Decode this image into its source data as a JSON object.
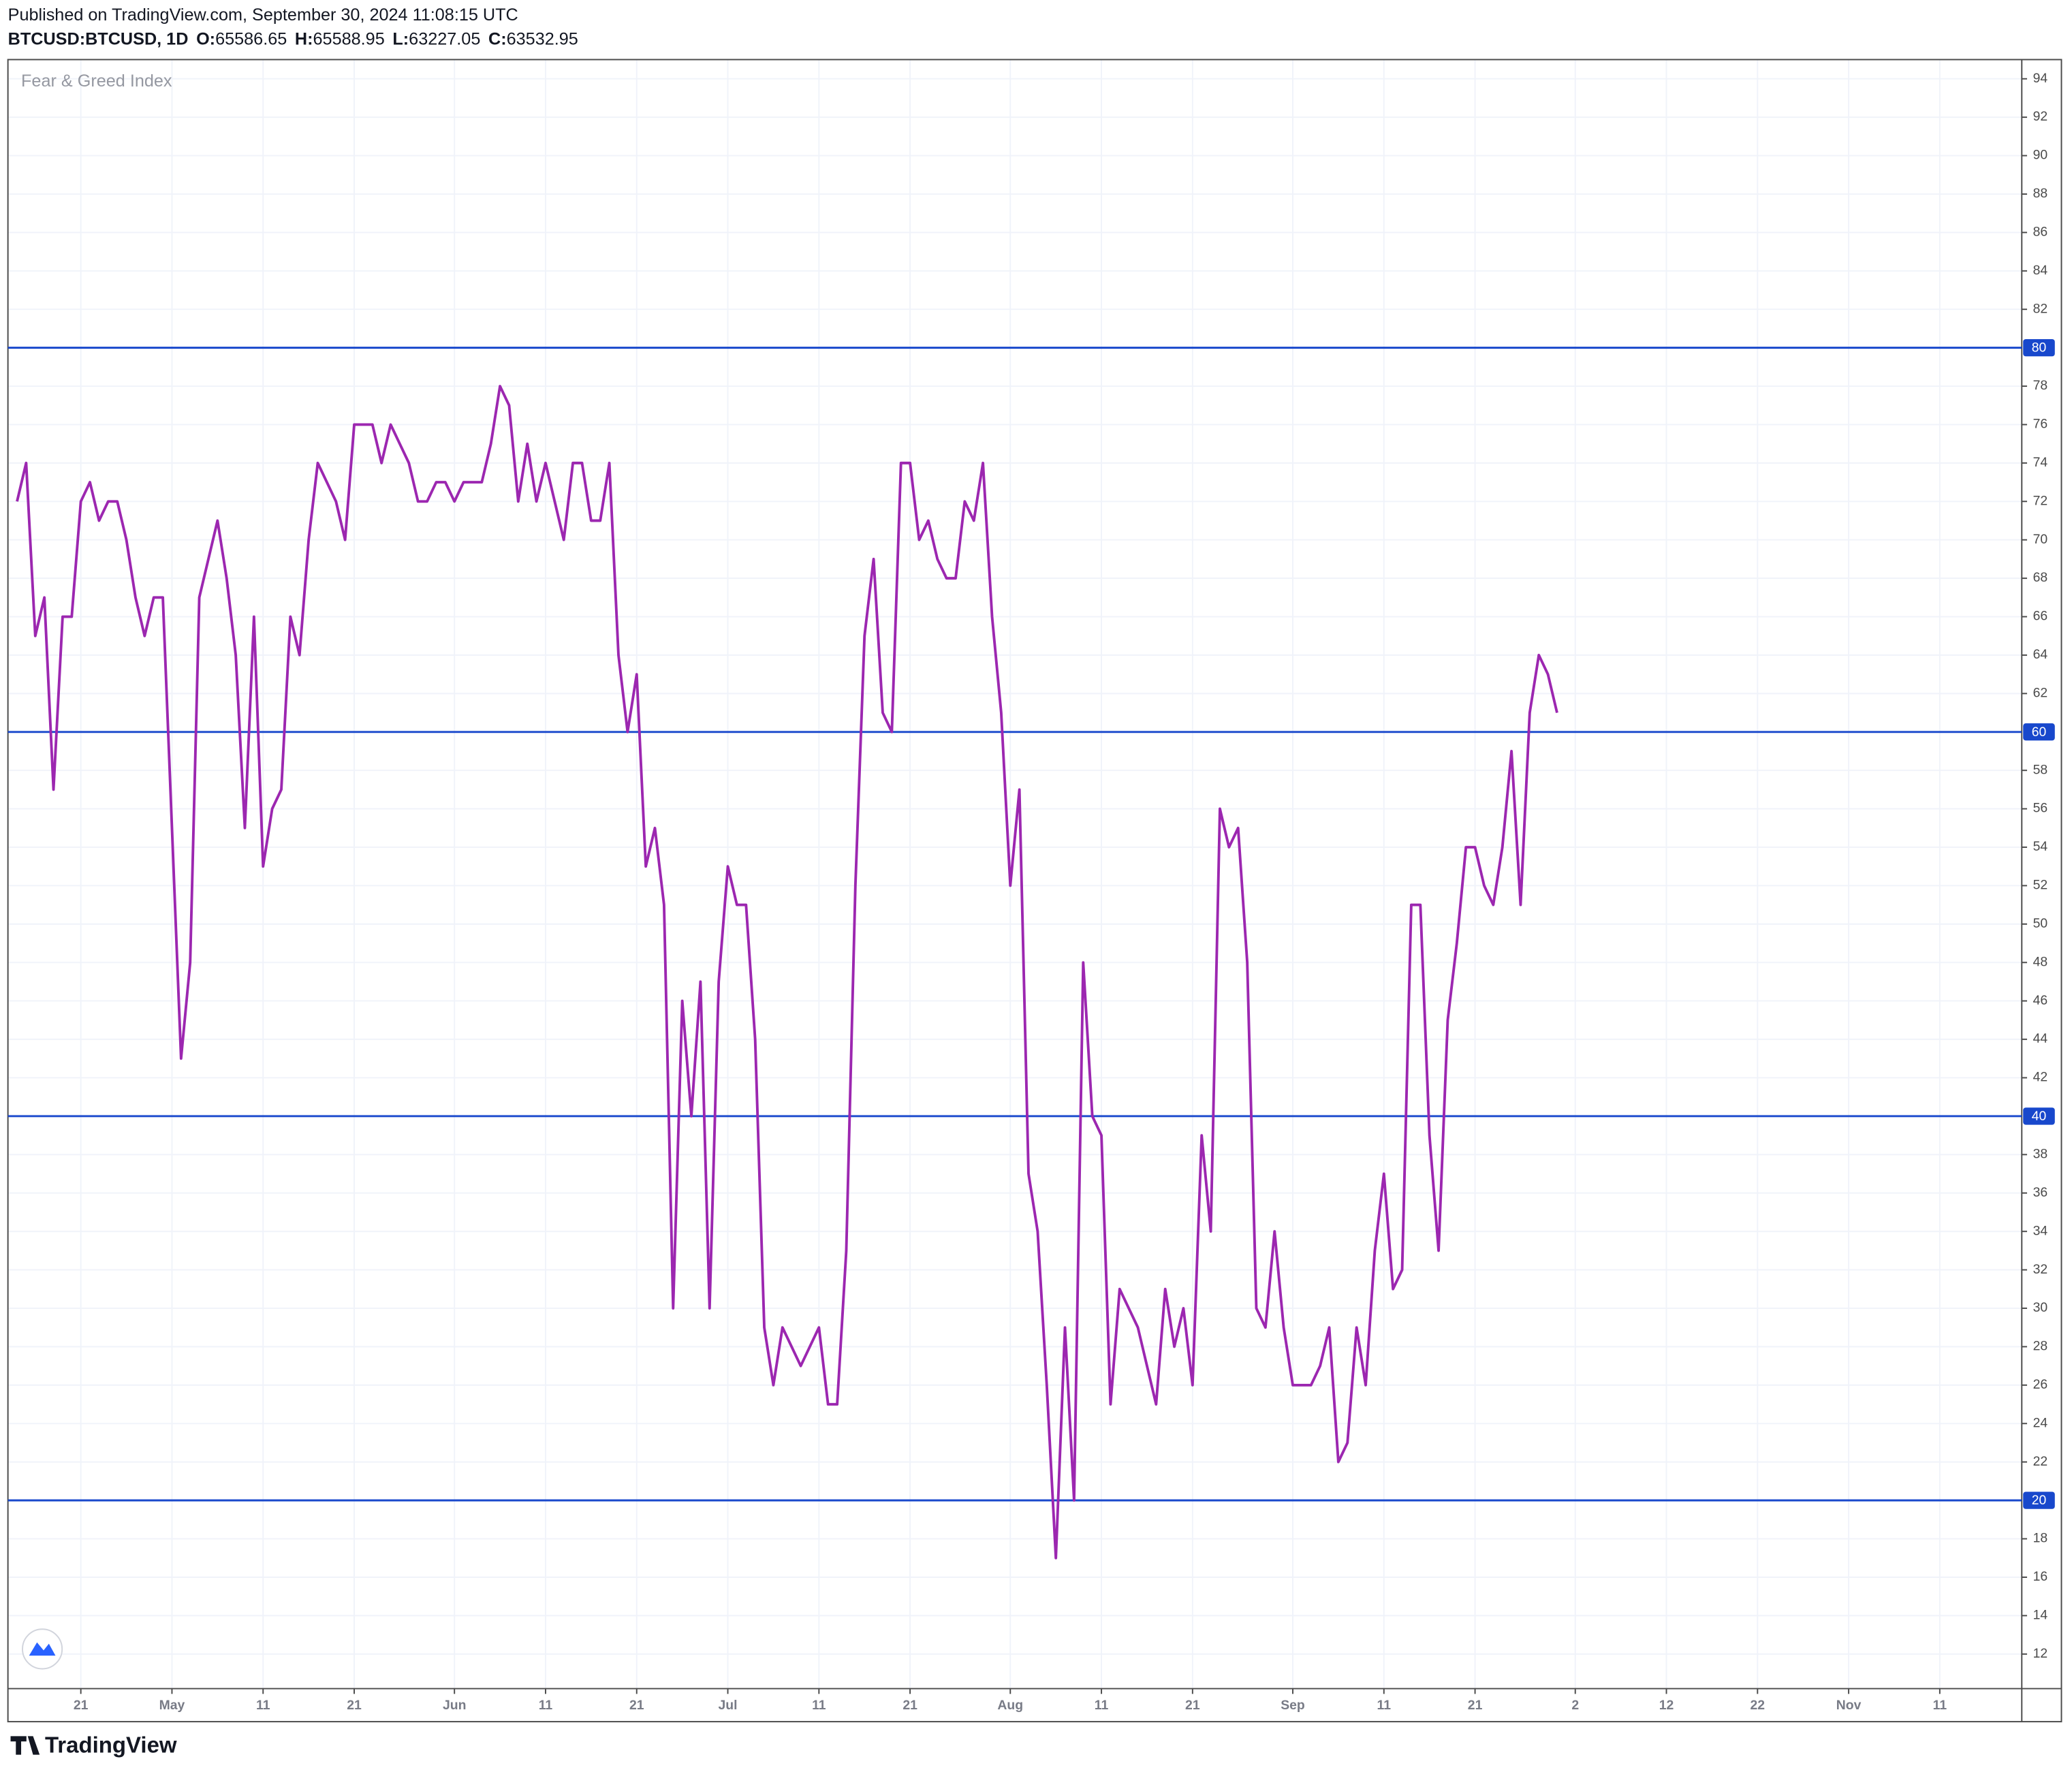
{
  "header": {
    "published": "Published on TradingView.com, September 30, 2024 11:08:15 UTC",
    "symbol": "BTCUSD:BTCUSD, 1D",
    "ohlc": [
      {
        "label": "O:",
        "value": 65586.65
      },
      {
        "label": "H:",
        "value": 65588.95
      },
      {
        "label": "L:",
        "value": 63227.05
      },
      {
        "label": "C:",
        "value": 63532.95
      }
    ]
  },
  "brand": "TradingView",
  "chart_data": {
    "type": "line",
    "title": "Fear & Greed Index",
    "x": [
      "Apr 14",
      "Apr 15",
      "Apr 16",
      "Apr 17",
      "Apr 18",
      "Apr 19",
      "Apr 20",
      "Apr 21",
      "Apr 22",
      "Apr 23",
      "Apr 24",
      "Apr 25",
      "Apr 26",
      "Apr 27",
      "Apr 28",
      "Apr 29",
      "Apr 30",
      "May 1",
      "May 2",
      "May 3",
      "May 4",
      "May 5",
      "May 6",
      "May 7",
      "May 8",
      "May 9",
      "May 10",
      "May 11",
      "May 12",
      "May 13",
      "May 14",
      "May 15",
      "May 16",
      "May 17",
      "May 18",
      "May 19",
      "May 20",
      "May 21",
      "May 22",
      "May 23",
      "May 24",
      "May 25",
      "May 26",
      "May 27",
      "May 28",
      "May 29",
      "May 30",
      "May 31",
      "Jun 1",
      "Jun 2",
      "Jun 3",
      "Jun 4",
      "Jun 5",
      "Jun 6",
      "Jun 7",
      "Jun 8",
      "Jun 9",
      "Jun 10",
      "Jun 11",
      "Jun 12",
      "Jun 13",
      "Jun 14",
      "Jun 15",
      "Jun 16",
      "Jun 17",
      "Jun 18",
      "Jun 19",
      "Jun 20",
      "Jun 21",
      "Jun 22",
      "Jun 23",
      "Jun 24",
      "Jun 25",
      "Jun 26",
      "Jun 27",
      "Jun 28",
      "Jun 29",
      "Jun 30",
      "Jul 1",
      "Jul 2",
      "Jul 3",
      "Jul 4",
      "Jul 5",
      "Jul 6",
      "Jul 7",
      "Jul 8",
      "Jul 9",
      "Jul 10",
      "Jul 11",
      "Jul 12",
      "Jul 13",
      "Jul 14",
      "Jul 15",
      "Jul 16",
      "Jul 17",
      "Jul 18",
      "Jul 19",
      "Jul 20",
      "Jul 21",
      "Jul 22",
      "Jul 23",
      "Jul 24",
      "Jul 25",
      "Jul 26",
      "Jul 27",
      "Jul 28",
      "Jul 29",
      "Jul 30",
      "Jul 31",
      "Aug 1",
      "Aug 2",
      "Aug 3",
      "Aug 4",
      "Aug 5",
      "Aug 6",
      "Aug 7",
      "Aug 8",
      "Aug 9",
      "Aug 10",
      "Aug 11",
      "Aug 12",
      "Aug 13",
      "Aug 14",
      "Aug 15",
      "Aug 16",
      "Aug 17",
      "Aug 18",
      "Aug 19",
      "Aug 20",
      "Aug 21",
      "Aug 22",
      "Aug 23",
      "Aug 24",
      "Aug 25",
      "Aug 26",
      "Aug 27",
      "Aug 28",
      "Aug 29",
      "Aug 30",
      "Aug 31",
      "Sep 1",
      "Sep 2",
      "Sep 3",
      "Sep 4",
      "Sep 5",
      "Sep 6",
      "Sep 7",
      "Sep 8",
      "Sep 9",
      "Sep 10",
      "Sep 11",
      "Sep 12",
      "Sep 13",
      "Sep 14",
      "Sep 15",
      "Sep 16",
      "Sep 17",
      "Sep 18",
      "Sep 19",
      "Sep 20",
      "Sep 21",
      "Sep 22",
      "Sep 23",
      "Sep 24",
      "Sep 25",
      "Sep 26",
      "Sep 27",
      "Sep 28",
      "Sep 29",
      "Sep 30"
    ],
    "series": [
      {
        "name": "Fear & Greed Index",
        "color": "#9c27b0",
        "values": [
          72,
          74,
          65,
          67,
          57,
          66,
          66,
          72,
          73,
          71,
          72,
          72,
          70,
          67,
          65,
          67,
          67,
          55,
          43,
          48,
          67,
          69,
          71,
          68,
          64,
          55,
          66,
          53,
          56,
          57,
          66,
          64,
          70,
          74,
          73,
          72,
          70,
          76,
          76,
          76,
          74,
          76,
          75,
          74,
          72,
          72,
          73,
          73,
          72,
          73,
          73,
          73,
          75,
          78,
          77,
          72,
          75,
          72,
          74,
          72,
          70,
          74,
          74,
          71,
          71,
          74,
          64,
          60,
          63,
          53,
          55,
          51,
          30,
          46,
          40,
          47,
          30,
          47,
          53,
          51,
          51,
          44,
          29,
          26,
          29,
          28,
          27,
          28,
          29,
          25,
          25,
          33,
          52,
          65,
          69,
          61,
          60,
          74,
          74,
          70,
          71,
          69,
          68,
          68,
          72,
          71,
          74,
          66,
          61,
          52,
          57,
          37,
          34,
          26,
          17,
          29,
          20,
          48,
          40,
          39,
          25,
          31,
          30,
          29,
          27,
          25,
          31,
          28,
          30,
          26,
          39,
          34,
          56,
          54,
          55,
          48,
          30,
          29,
          34,
          29,
          26,
          26,
          26,
          27,
          29,
          22,
          23,
          29,
          26,
          33,
          37,
          31,
          32,
          51,
          51,
          39,
          33,
          45,
          49,
          54,
          54,
          52,
          51,
          54,
          59,
          51,
          61,
          64,
          63,
          61
        ]
      }
    ],
    "xlim": [
      "Apr 13",
      "Nov 20"
    ],
    "xticks": [
      {
        "value": "Apr 21",
        "label": "21"
      },
      {
        "value": "May 1",
        "label": "May"
      },
      {
        "value": "May 11",
        "label": "11"
      },
      {
        "value": "May 21",
        "label": "21"
      },
      {
        "value": "Jun 1",
        "label": "Jun"
      },
      {
        "value": "Jun 11",
        "label": "11"
      },
      {
        "value": "Jun 21",
        "label": "21"
      },
      {
        "value": "Jul 1",
        "label": "Jul"
      },
      {
        "value": "Jul 11",
        "label": "11"
      },
      {
        "value": "Jul 21",
        "label": "21"
      },
      {
        "value": "Aug 1",
        "label": "Aug"
      },
      {
        "value": "Aug 11",
        "label": "11"
      },
      {
        "value": "Aug 21",
        "label": "21"
      },
      {
        "value": "Sep 1",
        "label": "Sep"
      },
      {
        "value": "Sep 11",
        "label": "11"
      },
      {
        "value": "Sep 21",
        "label": "21"
      },
      {
        "value": "Oct 2",
        "label": "2"
      },
      {
        "value": "Oct 12",
        "label": "12"
      },
      {
        "value": "Oct 22",
        "label": "22"
      },
      {
        "value": "Nov 1",
        "label": "Nov"
      },
      {
        "value": "Nov 11",
        "label": "11"
      }
    ],
    "ylim": [
      10.2,
      95
    ],
    "yticks": [
      12,
      14,
      16,
      18,
      22,
      24,
      26,
      28,
      30,
      32,
      34,
      36,
      38,
      42,
      44,
      46,
      48,
      50,
      52,
      54,
      56,
      58,
      62,
      64,
      66,
      68,
      70,
      72,
      74,
      76,
      78,
      82,
      84,
      86,
      88,
      90,
      92,
      94
    ],
    "hlines": {
      "values": [
        20,
        40,
        60,
        80
      ],
      "color": "#1848cc"
    },
    "grid": true
  }
}
